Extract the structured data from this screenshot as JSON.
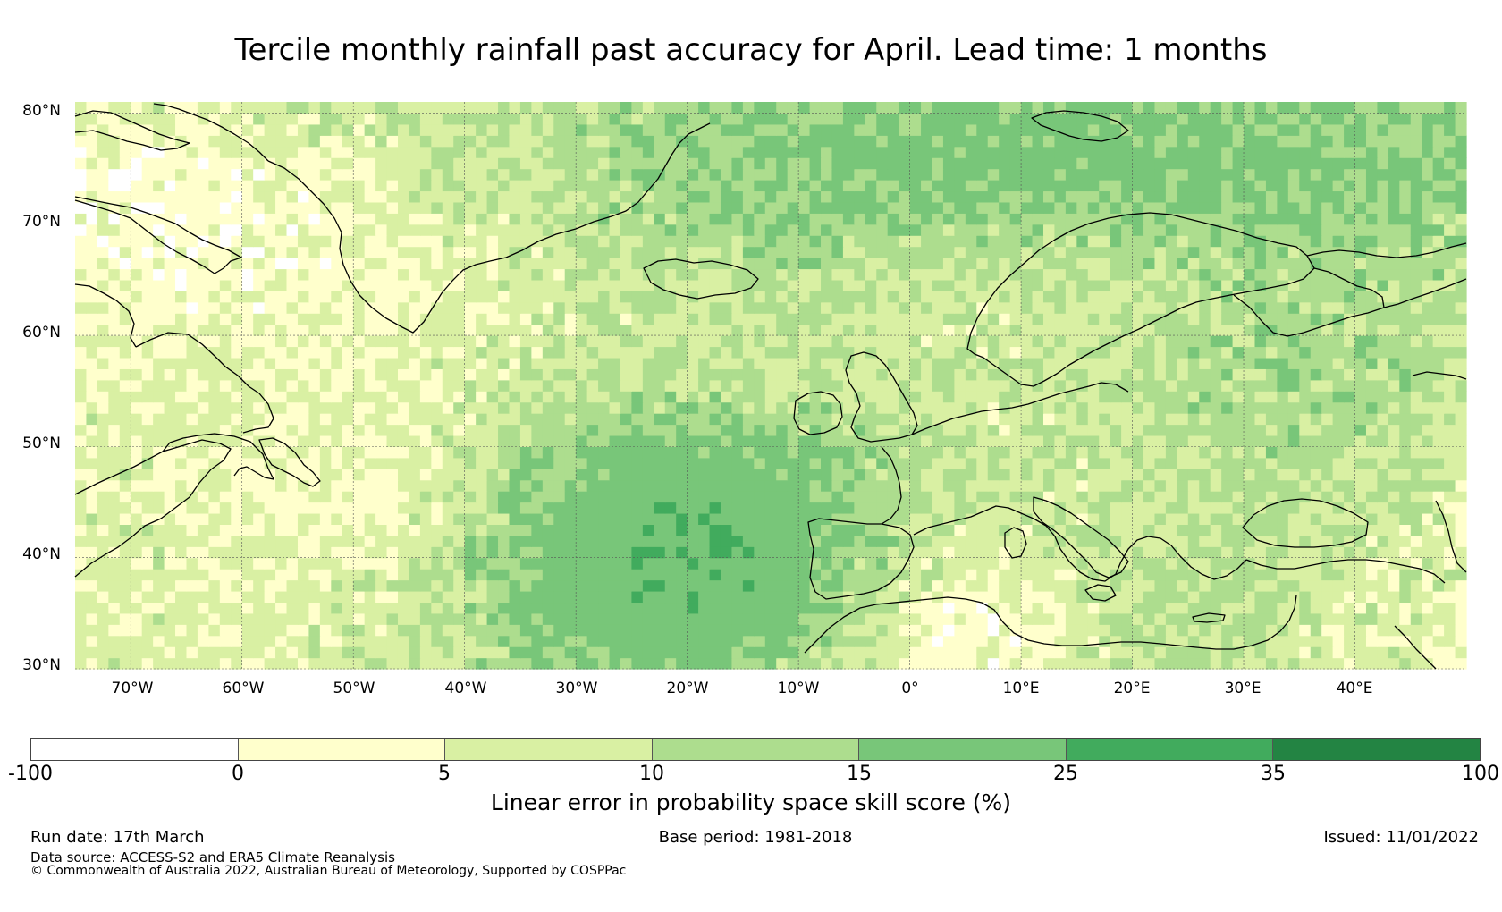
{
  "title": "Tercile monthly rainfall past accuracy for April. Lead time: 1 months",
  "map": {
    "region": "North Atlantic, Greenland, Europe and Mediterranean",
    "lon_range": [
      -75,
      50
    ],
    "lat_range": [
      30,
      81
    ],
    "lat_ticks": [
      {
        "value": 80,
        "label": "80°N"
      },
      {
        "value": 70,
        "label": "70°N"
      },
      {
        "value": 60,
        "label": "60°N"
      },
      {
        "value": 50,
        "label": "50°N"
      },
      {
        "value": 40,
        "label": "40°N"
      },
      {
        "value": 30,
        "label": "30°N"
      }
    ],
    "lon_ticks": [
      {
        "value": -70,
        "label": "70°W"
      },
      {
        "value": -60,
        "label": "60°W"
      },
      {
        "value": -50,
        "label": "50°W"
      },
      {
        "value": -40,
        "label": "40°W"
      },
      {
        "value": -30,
        "label": "30°W"
      },
      {
        "value": -20,
        "label": "20°W"
      },
      {
        "value": -10,
        "label": "10°W"
      },
      {
        "value": 0,
        "label": "0°"
      },
      {
        "value": 10,
        "label": "10°E"
      },
      {
        "value": 20,
        "label": "20°E"
      },
      {
        "value": 30,
        "label": "30°E"
      },
      {
        "value": 40,
        "label": "40°E"
      }
    ],
    "colors": {
      "coast": "#000000",
      "grid": "#555555"
    }
  },
  "colorbar": {
    "label": "Linear error in probability space skill score (%)",
    "bounds": [
      -100,
      0,
      5,
      10,
      15,
      25,
      35,
      100
    ],
    "tick_labels": [
      "-100",
      "0",
      "5",
      "10",
      "15",
      "25",
      "35",
      "100"
    ],
    "colors": [
      "#ffffff",
      "#ffffcc",
      "#d9f0a3",
      "#addd8e",
      "#78c679",
      "#41ab5d",
      "#238443"
    ]
  },
  "footer": {
    "run_date": "Run date: 17th March",
    "base_period": "Base period: 1981-2018",
    "issued": "Issued: 11/01/2022",
    "data_source": "Data source: ACCESS-S2 and ERA5 Climate Reanalysis",
    "copyright": "© Commonwealth of Australia 2022, Australian Bureau of Meteorology, Supported by COSPPac"
  }
}
